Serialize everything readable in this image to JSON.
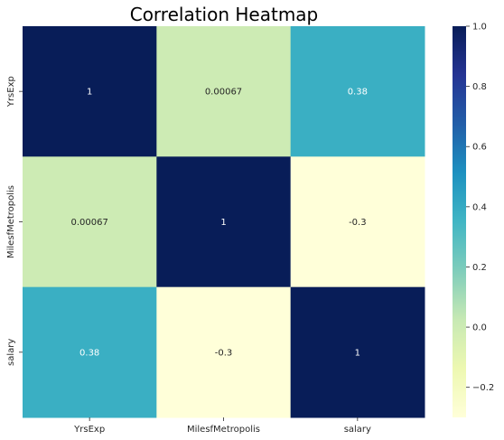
{
  "chart_data": {
    "type": "heatmap",
    "title": "Correlation Heatmap",
    "x_categories": [
      "YrsExp",
      "MilesfMetropolis",
      "salary"
    ],
    "y_categories": [
      "YrsExp",
      "MilesfMetropolis",
      "salary"
    ],
    "values": [
      [
        1.0,
        0.00067,
        0.38
      ],
      [
        0.00067,
        1.0,
        -0.3
      ],
      [
        0.38,
        -0.3,
        1.0
      ]
    ],
    "annotations": [
      [
        "1",
        "0.00067",
        "0.38"
      ],
      [
        "0.00067",
        "1",
        "-0.3"
      ],
      [
        "0.38",
        "-0.3",
        "1"
      ]
    ],
    "colormap": "YlGnBu",
    "vmin": -0.3,
    "vmax": 1.0,
    "colorbar_ticks": [
      1.0,
      0.8,
      0.6,
      0.4,
      0.2,
      0.0,
      -0.2
    ],
    "colorbar_tick_labels": [
      "1.0",
      "0.8",
      "0.6",
      "0.4",
      "0.2",
      "0.0",
      "−0.2"
    ],
    "colorbar_stops": [
      "#ffffd9",
      "#edf8b1",
      "#c7e9b4",
      "#7fcdbb",
      "#41b6c4",
      "#1d91c0",
      "#225ea8",
      "#253494",
      "#081d58"
    ],
    "annotation_colors": {
      "light": "#ffffff",
      "dark": "#262626"
    }
  }
}
